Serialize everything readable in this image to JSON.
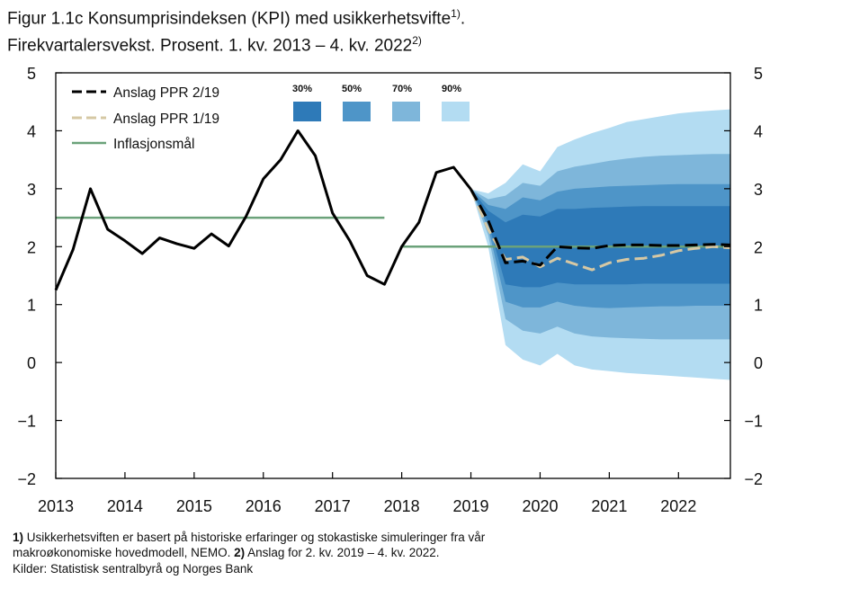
{
  "title": {
    "line1": "Figur 1.1c Konsumprisindeksen (KPI) med usikkerhetsvifte",
    "line1_sup": "1)",
    "line1_end": ".",
    "line2": "Firekvartalersvekst. Prosent. 1. kv. 2013 – 4. kv. 2022",
    "line2_sup": "2)"
  },
  "footnotes": {
    "line1_bold": "1)",
    "line1": " Usikkerhetsviften er basert på historiske erfaringer og stokastiske simuleringer fra vår",
    "line2": "makroøkonomiske hovedmodell, NEMO. ",
    "line2_bold": "2)",
    "line2_end": " Anslag for 2. kv. 2019 – 4. kv. 2022.",
    "line3": "Kilder: Statistisk sentralbyrå og Norges Bank"
  },
  "colors": {
    "fan30": "#2e7ab8",
    "fan50": "#4e95c8",
    "fan70": "#7eb6da",
    "fan90": "#b3dcf2",
    "ppr219": "#000000",
    "ppr119": "#d6c8a4",
    "target": "#6ba27a"
  },
  "chart_data": {
    "type": "line",
    "x_ticks": [
      "2013",
      "2014",
      "2015",
      "2016",
      "2017",
      "2018",
      "2019",
      "2020",
      "2021",
      "2022"
    ],
    "y_ticks": [
      "5",
      "4",
      "3",
      "2",
      "1",
      "0",
      "−1",
      "−2"
    ],
    "y_ticks_right": [
      "5",
      "4",
      "3",
      "2",
      "1",
      "0",
      "−1",
      "−2"
    ],
    "ylim": [
      -2,
      5
    ],
    "fan_labels": [
      "30%",
      "50%",
      "70%",
      "90%"
    ],
    "legend": [
      "Anslag PPR 2/19",
      "Anslag PPR 1/19",
      "Inflasjonsmål"
    ],
    "series": [
      {
        "name": "Anslag PPR 2/19",
        "x": [
          "2013K1",
          "2013K2",
          "2013K3",
          "2013K4",
          "2014K1",
          "2014K2",
          "2014K3",
          "2014K4",
          "2015K1",
          "2015K2",
          "2015K3",
          "2015K4",
          "2016K1",
          "2016K2",
          "2016K3",
          "2016K4",
          "2017K1",
          "2017K2",
          "2017K3",
          "2017K4",
          "2018K1",
          "2018K2",
          "2018K3",
          "2018K4",
          "2019K1",
          "2019K2",
          "2019K3",
          "2019K4",
          "2020K1",
          "2020K2",
          "2020K3",
          "2020K4",
          "2021K1",
          "2021K2",
          "2021K3",
          "2021K4",
          "2022K1",
          "2022K2",
          "2022K3",
          "2022K4"
        ],
        "values": [
          1.25,
          1.95,
          3.0,
          2.3,
          2.1,
          1.88,
          2.15,
          2.05,
          1.97,
          2.22,
          2.01,
          2.52,
          3.17,
          3.5,
          4.0,
          3.57,
          2.58,
          2.1,
          1.5,
          1.35,
          2.0,
          2.42,
          3.28,
          3.37,
          2.99,
          2.45,
          1.72,
          1.75,
          1.68,
          2.0,
          1.98,
          1.97,
          2.02,
          2.03,
          2.03,
          2.02,
          2.02,
          2.03,
          2.04,
          2.03
        ]
      },
      {
        "name": "Anslag PPR 1/19",
        "x": [
          "2019K1",
          "2019K2",
          "2019K3",
          "2019K4",
          "2020K1",
          "2020K2",
          "2020K3",
          "2020K4",
          "2021K1",
          "2021K2",
          "2021K3",
          "2021K4",
          "2022K1",
          "2022K2",
          "2022K3",
          "2022K4"
        ],
        "values": [
          2.99,
          2.3,
          1.78,
          1.82,
          1.65,
          1.8,
          1.7,
          1.6,
          1.72,
          1.78,
          1.8,
          1.85,
          1.93,
          1.97,
          2.0,
          1.98
        ]
      },
      {
        "name": "Inflasjonsmål",
        "segments": [
          {
            "x": [
              "2013K1",
              "2017K4"
            ],
            "values": [
              2.5,
              2.5
            ]
          },
          {
            "x": [
              "2018K1",
              "2022K4"
            ],
            "values": [
              2.0,
              2.0
            ]
          }
        ]
      }
    ],
    "fan_quarters": [
      "2019K1",
      "2019K2",
      "2019K3",
      "2019K4",
      "2020K1",
      "2020K2",
      "2020K3",
      "2020K4",
      "2021K1",
      "2021K2",
      "2021K3",
      "2021K4",
      "2022K1",
      "2022K2",
      "2022K3",
      "2022K4"
    ],
    "fan_bands": {
      "90": {
        "upper": [
          2.99,
          2.92,
          3.1,
          3.42,
          3.3,
          3.72,
          3.85,
          3.96,
          4.05,
          4.15,
          4.2,
          4.25,
          4.3,
          4.33,
          4.35,
          4.37
        ],
        "lower": [
          2.99,
          2.0,
          0.3,
          0.05,
          -0.05,
          0.15,
          -0.05,
          -0.12,
          -0.15,
          -0.18,
          -0.2,
          -0.22,
          -0.24,
          -0.26,
          -0.28,
          -0.3
        ]
      },
      "70": {
        "upper": [
          2.99,
          2.82,
          2.88,
          3.1,
          3.05,
          3.3,
          3.38,
          3.43,
          3.48,
          3.52,
          3.55,
          3.57,
          3.58,
          3.59,
          3.6,
          3.6
        ],
        "lower": [
          2.99,
          2.2,
          0.75,
          0.55,
          0.5,
          0.62,
          0.5,
          0.45,
          0.43,
          0.42,
          0.41,
          0.4,
          0.4,
          0.4,
          0.4,
          0.4
        ]
      },
      "50": {
        "upper": [
          2.99,
          2.72,
          2.65,
          2.85,
          2.8,
          2.95,
          3.0,
          3.02,
          3.04,
          3.05,
          3.06,
          3.07,
          3.08,
          3.08,
          3.08,
          3.08
        ],
        "lower": [
          2.99,
          2.32,
          1.05,
          0.95,
          0.95,
          1.05,
          0.98,
          0.95,
          0.94,
          0.95,
          0.96,
          0.97,
          0.97,
          0.98,
          0.98,
          0.98
        ]
      },
      "30": {
        "upper": [
          2.99,
          2.62,
          2.42,
          2.55,
          2.52,
          2.65,
          2.65,
          2.67,
          2.68,
          2.69,
          2.7,
          2.7,
          2.7,
          2.7,
          2.7,
          2.7
        ],
        "lower": [
          2.99,
          2.42,
          1.35,
          1.3,
          1.3,
          1.38,
          1.35,
          1.35,
          1.35,
          1.35,
          1.36,
          1.36,
          1.36,
          1.36,
          1.36,
          1.36
        ]
      }
    }
  }
}
